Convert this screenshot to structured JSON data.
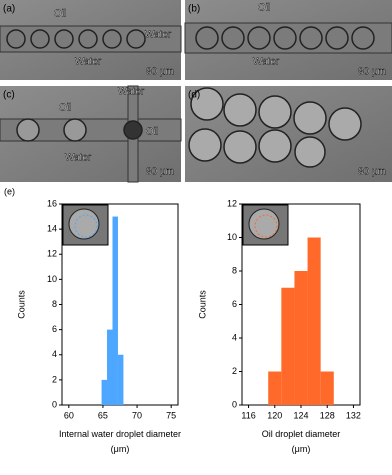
{
  "panels": [
    {
      "label": "(a)",
      "annotations": [
        "Oil",
        "Water",
        "Water",
        "80 μm"
      ]
    },
    {
      "label": "(b)",
      "annotations": [
        "Oil",
        "Water",
        "80 μm"
      ]
    },
    {
      "label": "(c)",
      "annotations": [
        "Oil",
        "Water",
        "Water",
        "Oil",
        "80 μm"
      ]
    },
    {
      "label": "(d)",
      "annotations": [
        "80 μm"
      ]
    }
  ],
  "figure_label": "(e)",
  "chart_data": [
    {
      "type": "histogram",
      "x_label": "Internal water droplet diameter\n(μm)",
      "y_label": "Counts",
      "bins": [
        64.8,
        65.6,
        66.4,
        67.2,
        68
      ],
      "values": [
        2,
        6,
        15,
        4
      ],
      "color": "#4da6ff",
      "xlim": [
        59,
        76
      ],
      "xticks": [
        60,
        65,
        70,
        75
      ],
      "ylim": [
        0,
        16
      ],
      "yticks": [
        0,
        2,
        4,
        6,
        8,
        10,
        12,
        14,
        16
      ]
    },
    {
      "type": "histogram",
      "x_label": "Oil droplet diameter\n(μm)",
      "y_label": "Counts",
      "bins": [
        119,
        121,
        123,
        125,
        127,
        129
      ],
      "values": [
        2,
        7,
        8,
        10,
        2
      ],
      "color": "#ff6a2a",
      "xlim": [
        115,
        133
      ],
      "xticks": [
        116,
        120,
        124,
        128,
        132
      ],
      "ylim": [
        0,
        12
      ],
      "yticks": [
        0,
        2,
        4,
        6,
        8,
        10,
        12
      ]
    }
  ]
}
